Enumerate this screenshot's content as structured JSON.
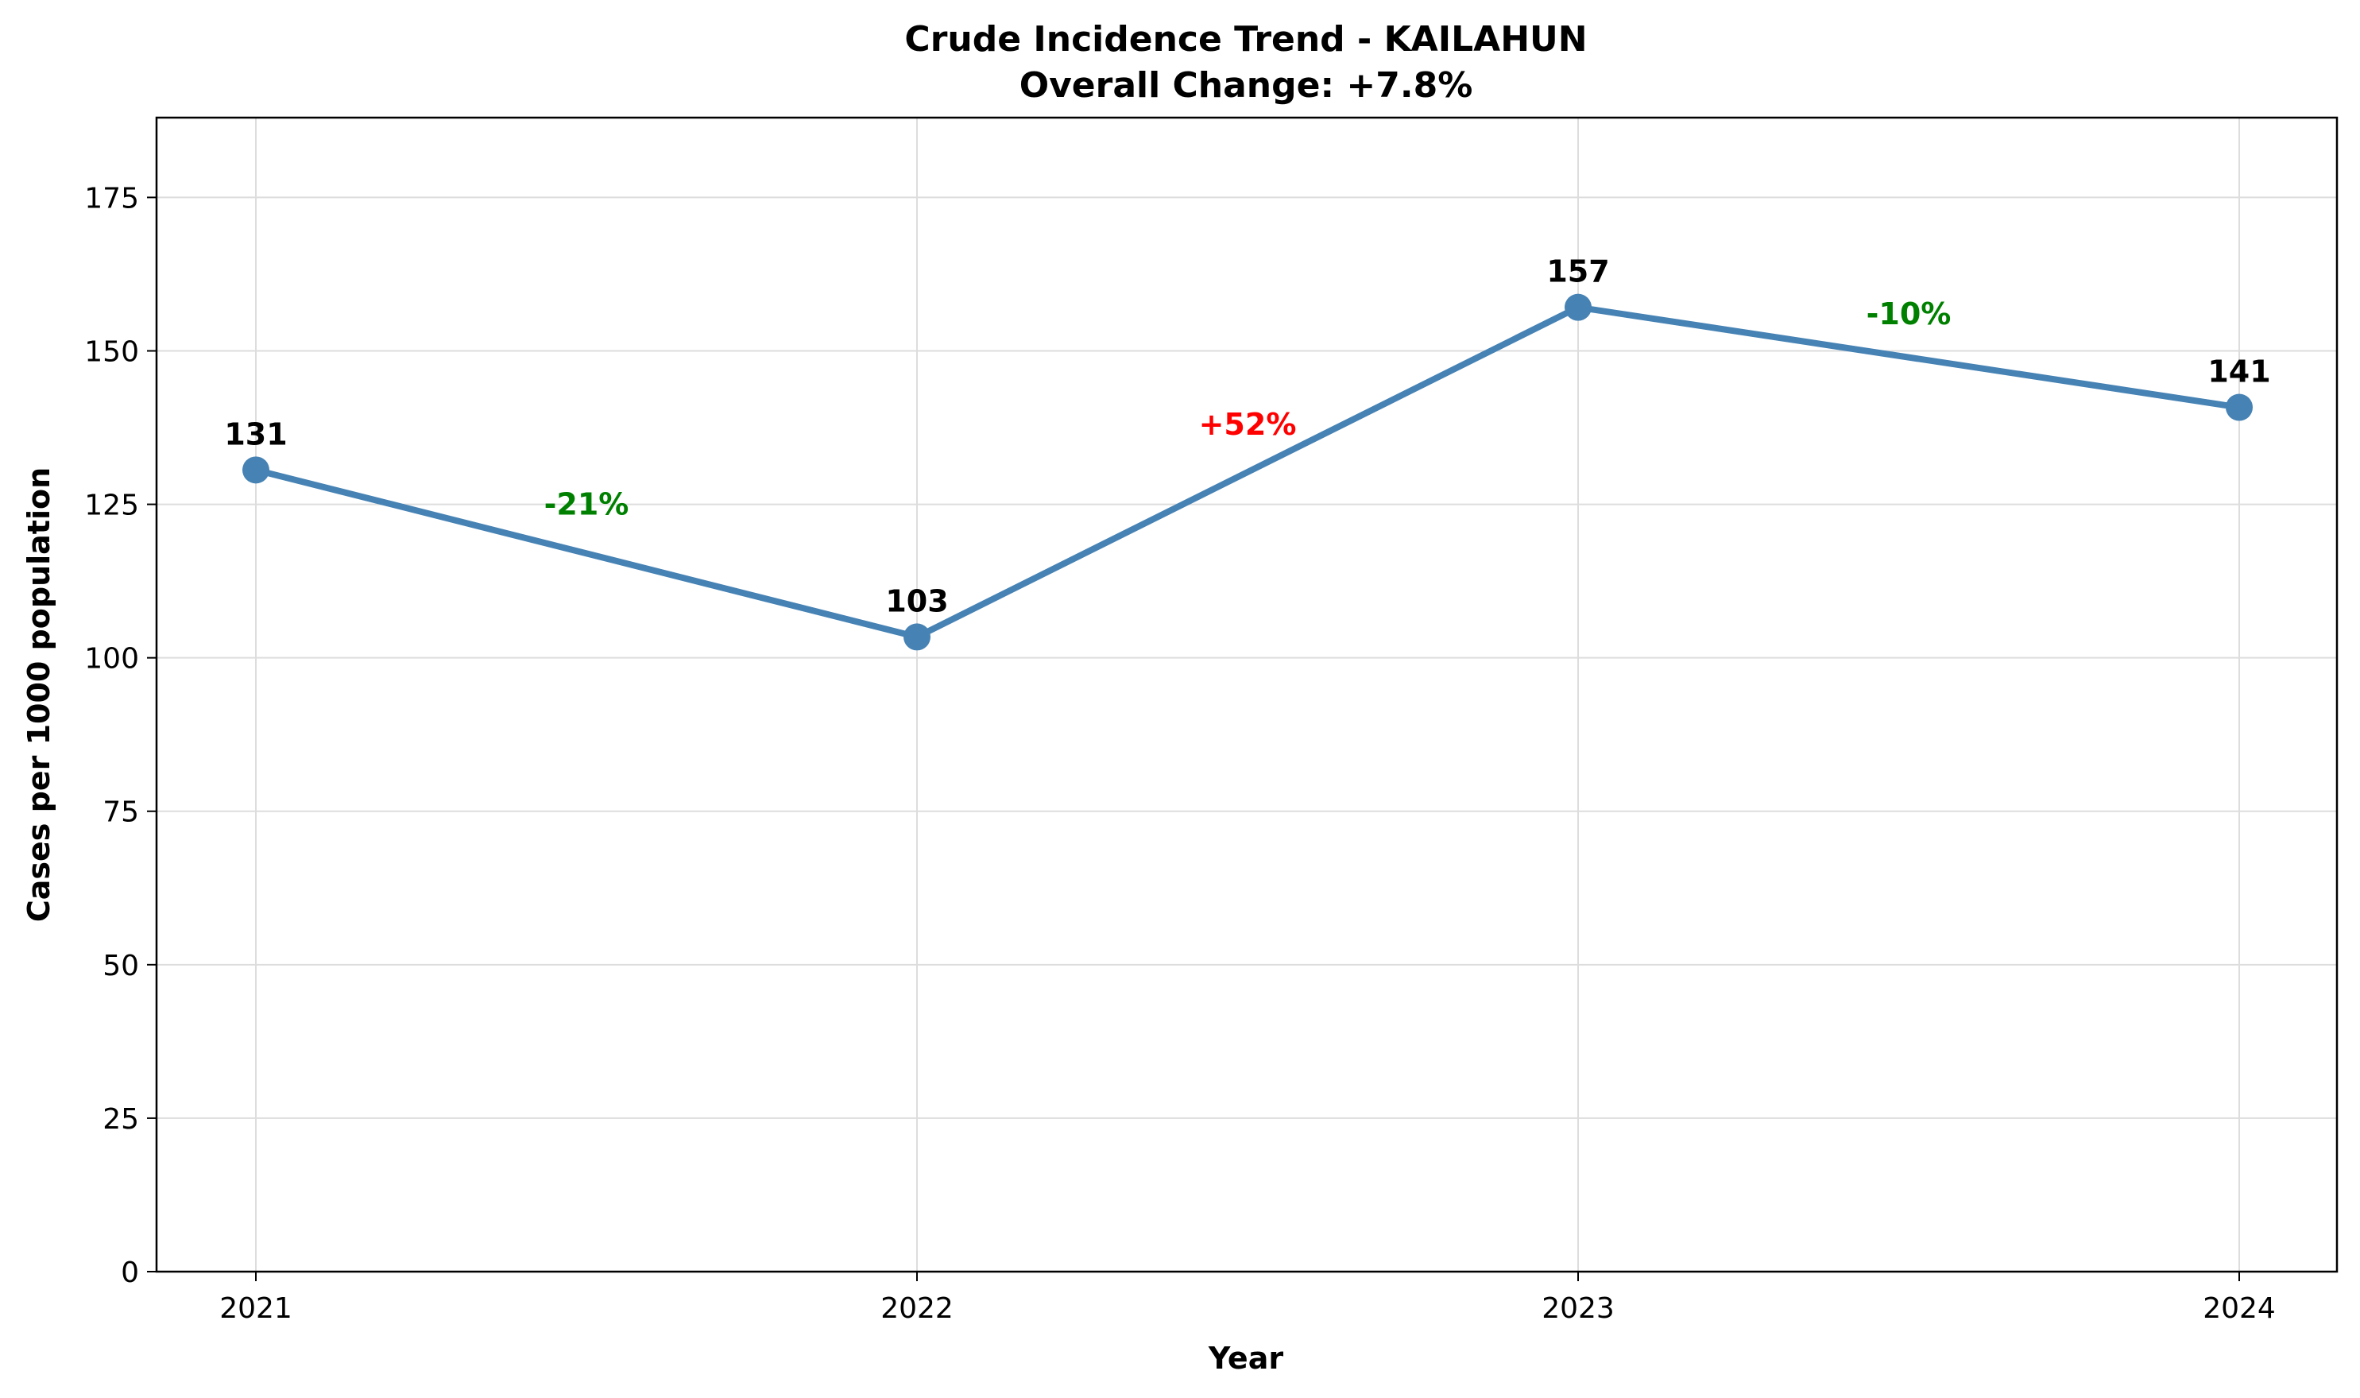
{
  "chart_data": {
    "type": "line",
    "title": "Crude Incidence Trend - KAILAHUN",
    "subtitle": "Overall Change: +7.8%",
    "xlabel": "Year",
    "ylabel": "Cases per 1000 population",
    "categories": [
      "2021",
      "2022",
      "2023",
      "2024"
    ],
    "series": [
      {
        "values": [
          130.6,
          103.4,
          157.1,
          140.8
        ],
        "color": "#4682b4"
      }
    ],
    "data_labels": [
      "131",
      "103",
      "157",
      "141"
    ],
    "change_labels": [
      {
        "text": "-21%",
        "color": "#008000",
        "y": 125.0
      },
      {
        "text": "+52%",
        "color": "#ff0000",
        "y": 138.0
      },
      {
        "text": "-10%",
        "color": "#008000",
        "y": 156.0
      }
    ],
    "ylim": [
      0,
      188
    ],
    "yticks": [
      0,
      25,
      50,
      75,
      100,
      125,
      150,
      175
    ],
    "grid": true
  }
}
